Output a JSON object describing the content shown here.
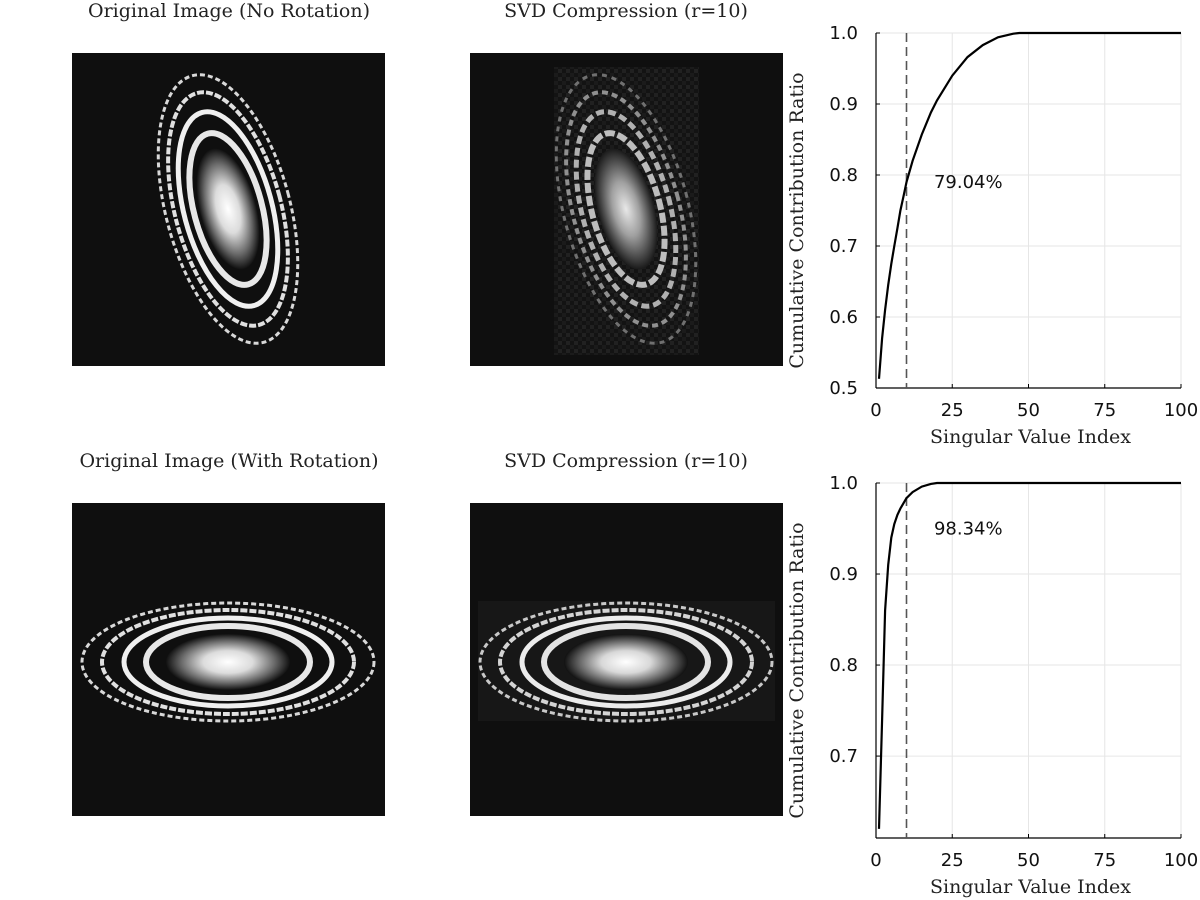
{
  "rows": [
    {
      "original_title": "Original Image (No Rotation)",
      "compressed_title": "SVD Compression (r=10)"
    },
    {
      "original_title": "Original Image (With Rotation)",
      "compressed_title": "SVD Compression (r=10)"
    }
  ],
  "colors": {
    "background": "#0f0f0f",
    "curve": "#000000",
    "grid": "#e6e6e6",
    "marker": "#555555"
  },
  "chart_data": [
    {
      "type": "line",
      "xlabel": "Singular Value Index",
      "ylabel": "Cumulative Contribution Ratio",
      "xlim": [
        0,
        100
      ],
      "ylim": [
        0.5,
        1.0
      ],
      "xticks": [
        0,
        25,
        50,
        75,
        100
      ],
      "xtick_labels": [
        "0",
        "25",
        "50",
        "75",
        "100"
      ],
      "yticks": [
        0.5,
        0.6,
        0.7,
        0.8,
        0.9,
        1.0
      ],
      "ytick_labels": [
        "0.5",
        "0.6",
        "0.7",
        "0.8",
        "0.9",
        "1.0"
      ],
      "grid": true,
      "vline_x": 10,
      "annotation": "79.04%",
      "series": [
        {
          "name": "cumulative",
          "x": [
            1,
            2,
            3,
            4,
            5,
            6,
            7,
            8,
            9,
            10,
            12,
            15,
            18,
            20,
            25,
            30,
            35,
            40,
            45,
            47,
            60,
            80,
            100
          ],
          "y": [
            0.513,
            0.57,
            0.61,
            0.645,
            0.675,
            0.7,
            0.725,
            0.75,
            0.77,
            0.79,
            0.82,
            0.857,
            0.888,
            0.905,
            0.94,
            0.966,
            0.983,
            0.994,
            0.999,
            1.0,
            1.0,
            1.0,
            1.0
          ]
        }
      ]
    },
    {
      "type": "line",
      "xlabel": "Singular Value Index",
      "ylabel": "Cumulative Contribution Ratio",
      "xlim": [
        0,
        100
      ],
      "ylim": [
        0.61,
        1.0
      ],
      "xticks": [
        0,
        25,
        50,
        75,
        100
      ],
      "xtick_labels": [
        "0",
        "25",
        "50",
        "75",
        "100"
      ],
      "yticks": [
        0.7,
        0.8,
        0.9,
        1.0
      ],
      "ytick_labels": [
        "0.7",
        "0.8",
        "0.9",
        "1.0"
      ],
      "grid": true,
      "vline_x": 10,
      "annotation": "98.34%",
      "series": [
        {
          "name": "cumulative",
          "x": [
            1,
            2,
            3,
            4,
            5,
            6,
            7,
            8,
            10,
            12,
            15,
            18,
            20,
            30,
            50,
            100
          ],
          "y": [
            0.62,
            0.74,
            0.86,
            0.91,
            0.94,
            0.955,
            0.965,
            0.972,
            0.9834,
            0.99,
            0.996,
            0.999,
            1.0,
            1.0,
            1.0,
            1.0
          ]
        }
      ]
    }
  ]
}
